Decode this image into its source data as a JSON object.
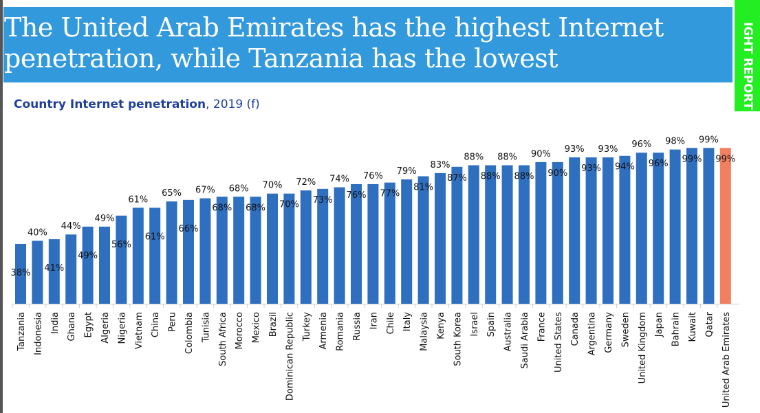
{
  "headline": "The United Arab Emirates has the highest Internet penetration, while Tanzania has the lowest",
  "side_tab": "IGHT REPORT",
  "colors": {
    "bar": "#2e6fc0",
    "highlight": "#f08060",
    "title_bg": "#3399dd",
    "side_tab": "#22ee22"
  },
  "chart_data": {
    "type": "bar",
    "title": "Country Internet penetration",
    "title_suffix": ", 2019 (f)",
    "ylim": [
      0,
      100
    ],
    "grid": false,
    "categories": [
      "Tanzania",
      "Indonesia",
      "India",
      "Ghana",
      "Egypt",
      "Algeria",
      "Nigeria",
      "Vietnam",
      "China",
      "Peru",
      "Colombia",
      "Tunisia",
      "South Africa",
      "Morocco",
      "Mexico",
      "Brazil",
      "Dominican Republic",
      "Turkey",
      "Armenia",
      "Romania",
      "Russia",
      "Iran",
      "Chile",
      "Italy",
      "Malaysia",
      "Kenya",
      "South Korea",
      "Israel",
      "Spain",
      "Australia",
      "Saudi Arabia",
      "France",
      "United States",
      "Canada",
      "Argentina",
      "Germany",
      "Sweden",
      "United Kingdom",
      "Japan",
      "Bahrain",
      "Kuwait",
      "Qatar",
      "United Arab Emirates"
    ],
    "values": [
      38,
      40,
      41,
      44,
      49,
      49,
      56,
      61,
      61,
      65,
      66,
      67,
      68,
      68,
      68,
      70,
      70,
      72,
      73,
      74,
      76,
      76,
      77,
      79,
      81,
      83,
      87,
      88,
      88,
      88,
      88,
      90,
      90,
      93,
      93,
      93,
      94,
      96,
      96,
      98,
      99,
      99,
      99
    ],
    "labels": [
      "38%",
      "40%",
      "41%",
      "44%",
      "49%",
      "49%",
      "56%",
      "61%",
      "61%",
      "65%",
      "66%",
      "67%",
      "68%",
      "68%",
      "68%",
      "70%",
      "70%",
      "72%",
      "73%",
      "74%",
      "76%",
      "76%",
      "77%",
      "79%",
      "81%",
      "83%",
      "87%",
      "88%",
      "88%",
      "88%",
      "88%",
      "90%",
      "90%",
      "93%",
      "93%",
      "93%",
      "94%",
      "96%",
      "96%",
      "98%",
      "99%",
      "99%",
      "99%"
    ],
    "highlight": "United Arab Emirates"
  }
}
